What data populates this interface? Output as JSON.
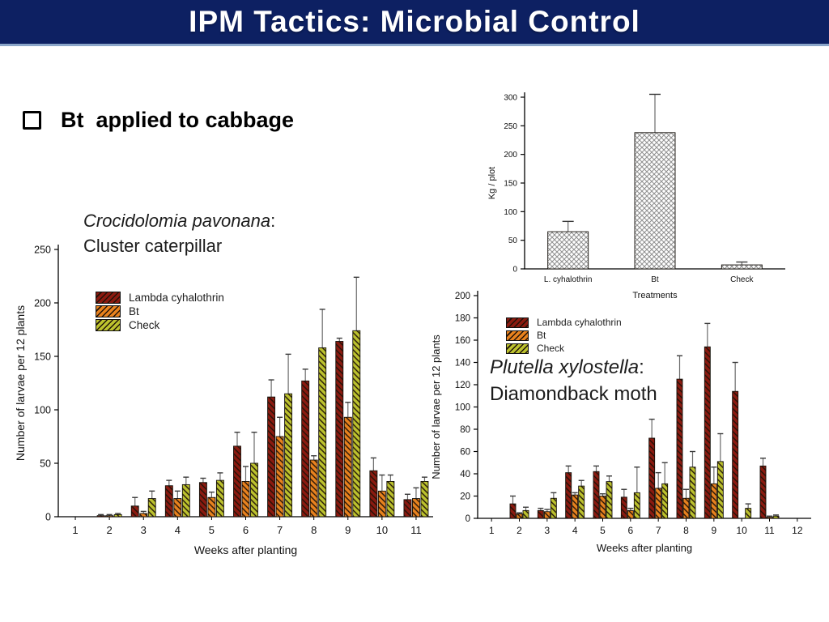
{
  "slide": {
    "title": "IPM Tactics: Microbial Control",
    "bullet_text": "Bt  applied to cabbage"
  },
  "colors": {
    "title_bar_bg": "#0D2062",
    "title_bar_underline": "#8BA6C9",
    "title_text": "#FFFFFF",
    "lambda_cyhalothrin": "#8B1A10",
    "bt": "#E8821E",
    "check": "#BCC22E",
    "yield_bar_fill": "#FFFFFF",
    "yield_bar_hatch": "#8F8F8F",
    "hatch_line": "#201208"
  },
  "chart_data": [
    {
      "id": "yield-per-treatment",
      "type": "bar",
      "categories": [
        "L. cyhalothrin",
        "Bt",
        "Check"
      ],
      "values": [
        65,
        238,
        7
      ],
      "errors_plus": [
        18,
        67,
        5
      ],
      "xlabel": "Treatments",
      "ylabel": "Kg / plot",
      "ylim": [
        0,
        300
      ],
      "ytick_step": 50,
      "pattern": "crosshatch",
      "grid": false,
      "legend_position": "none"
    },
    {
      "id": "cluster-caterpillar",
      "type": "bar",
      "species_italic": "Crocidolomia pavonana",
      "title_suffix": ":",
      "common_name": "Cluster caterpillar",
      "categories": [
        1,
        2,
        3,
        4,
        5,
        6,
        7,
        8,
        9,
        10,
        11
      ],
      "series": [
        {
          "name": "Lambda cyhalothrin",
          "color": "#8B1A10",
          "values": [
            0,
            1,
            10,
            29,
            32,
            66,
            112,
            127,
            164,
            43,
            16
          ],
          "errors_plus": [
            0,
            1,
            8,
            5,
            4,
            13,
            16,
            11,
            3,
            12,
            5
          ]
        },
        {
          "name": "Bt",
          "color": "#E8821E",
          "values": [
            0,
            1,
            3,
            17,
            18,
            33,
            75,
            53,
            93,
            24,
            17
          ],
          "errors_plus": [
            0,
            1,
            2,
            7,
            5,
            14,
            18,
            4,
            14,
            15,
            10
          ]
        },
        {
          "name": "Check",
          "color": "#BCC22E",
          "values": [
            0,
            2,
            17,
            30,
            34,
            50,
            115,
            158,
            174,
            33,
            33
          ],
          "errors_plus": [
            0,
            1,
            7,
            7,
            7,
            29,
            37,
            36,
            50,
            6,
            4
          ]
        }
      ],
      "xlabel": "Weeks after planting",
      "ylabel": "Number of larvae per 12 plants",
      "ylim": [
        0,
        250
      ],
      "ytick_step": 50,
      "grid": false,
      "legend_position": "top-left-inside"
    },
    {
      "id": "diamondback-moth",
      "type": "bar",
      "species_italic": "Plutella xylostella",
      "title_suffix": ":",
      "common_name": "Diamondback moth",
      "categories": [
        1,
        2,
        3,
        4,
        5,
        6,
        7,
        8,
        9,
        10,
        11,
        12
      ],
      "series": [
        {
          "name": "Lambda cyhalothrin",
          "color": "#8B1A10",
          "values": [
            0,
            13,
            7,
            41,
            42,
            19,
            72,
            125,
            154,
            114,
            47,
            0
          ],
          "errors_plus": [
            0,
            7,
            2,
            6,
            5,
            7,
            17,
            21,
            21,
            26,
            7,
            0
          ]
        },
        {
          "name": "Bt",
          "color": "#E8821E",
          "values": [
            0,
            4,
            6,
            21,
            20,
            7,
            27,
            18,
            31,
            0,
            1,
            0
          ],
          "errors_plus": [
            0,
            1,
            2,
            2,
            2,
            2,
            14,
            8,
            15,
            0,
            1,
            0
          ]
        },
        {
          "name": "Check",
          "color": "#BCC22E",
          "values": [
            0,
            7,
            18,
            29,
            33,
            23,
            31,
            46,
            51,
            9,
            2,
            0
          ],
          "errors_plus": [
            0,
            3,
            5,
            5,
            5,
            23,
            19,
            14,
            25,
            4,
            1,
            0
          ]
        }
      ],
      "xlabel": "Weeks after planting",
      "ylabel": "Number of larvae per 12 plants",
      "ylim": [
        0,
        200
      ],
      "ytick_step": 20,
      "grid": false,
      "legend_position": "top-left-inside"
    }
  ]
}
